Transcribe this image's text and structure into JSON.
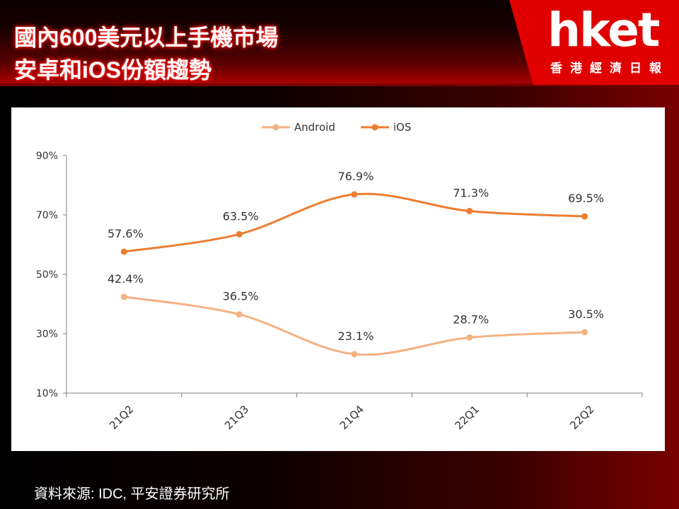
{
  "header": {
    "title_line1": "國內600美元以上手機市場",
    "title_line2": "安卓和iOS份額趨勢",
    "logo_text": "hket",
    "logo_subtitle": "香港經濟日報"
  },
  "source": "資料來源: IDC, 平安證券研究所",
  "colors": {
    "android": "#f4b183",
    "ios": "#ed7d31",
    "header_red": "#e00000"
  },
  "chart_data": {
    "type": "line",
    "categories": [
      "21Q2",
      "21Q3",
      "21Q4",
      "22Q1",
      "22Q2"
    ],
    "series": [
      {
        "name": "Android",
        "values": [
          42.4,
          36.5,
          23.1,
          28.7,
          30.5
        ],
        "labels": [
          "42.4%",
          "36.5%",
          "23.1%",
          "28.7%",
          "30.5%"
        ]
      },
      {
        "name": "iOS",
        "values": [
          57.6,
          63.5,
          76.9,
          71.3,
          69.5
        ],
        "labels": [
          "57.6%",
          "63.5%",
          "76.9%",
          "71.3%",
          "69.5%"
        ]
      }
    ],
    "yticks": [
      10,
      30,
      50,
      70,
      90
    ],
    "ytick_labels": [
      "10%",
      "30%",
      "50%",
      "70%",
      "90%"
    ],
    "ylim": [
      10,
      90
    ],
    "legend": "top-center",
    "grid": false
  }
}
